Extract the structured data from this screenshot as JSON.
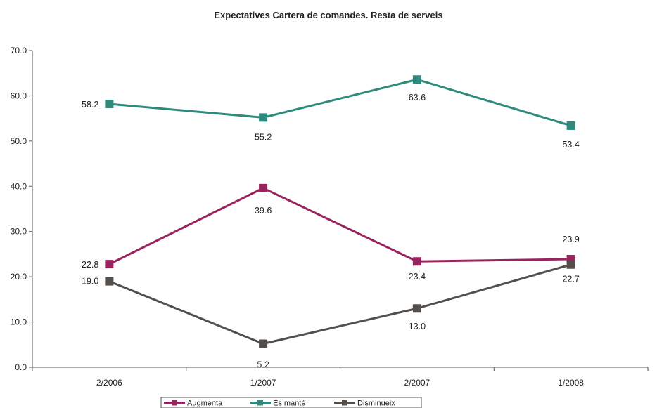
{
  "chart_data": {
    "type": "line",
    "title": "Expectatives Cartera de comandes. Resta de serveis",
    "xlabel": "",
    "ylabel": "",
    "categories": [
      "2/2006",
      "1/2007",
      "2/2007",
      "1/2008"
    ],
    "ylim": [
      0,
      70
    ],
    "ytick_labels": [
      "0.0",
      "10.0",
      "20.0",
      "30.0",
      "40.0",
      "50.0",
      "60.0",
      "70.0"
    ],
    "grid": false,
    "legend_position": "bottom",
    "series": [
      {
        "name": "Augmenta",
        "color": "#99235f",
        "values": [
          22.8,
          39.6,
          23.4,
          23.9
        ],
        "labels": [
          "22.8",
          "39.6",
          "23.4",
          "23.9"
        ]
      },
      {
        "name": "Es manté",
        "color": "#2f8a7e",
        "values": [
          58.2,
          55.2,
          63.6,
          53.4
        ],
        "labels": [
          "58.2",
          "55.2",
          "63.6",
          "53.4"
        ]
      },
      {
        "name": "Disminueix",
        "color": "#544f4a",
        "values": [
          19.0,
          5.2,
          13.0,
          22.7
        ],
        "labels": [
          "19.0",
          "5.2",
          "13.0",
          "22.7"
        ]
      }
    ]
  }
}
